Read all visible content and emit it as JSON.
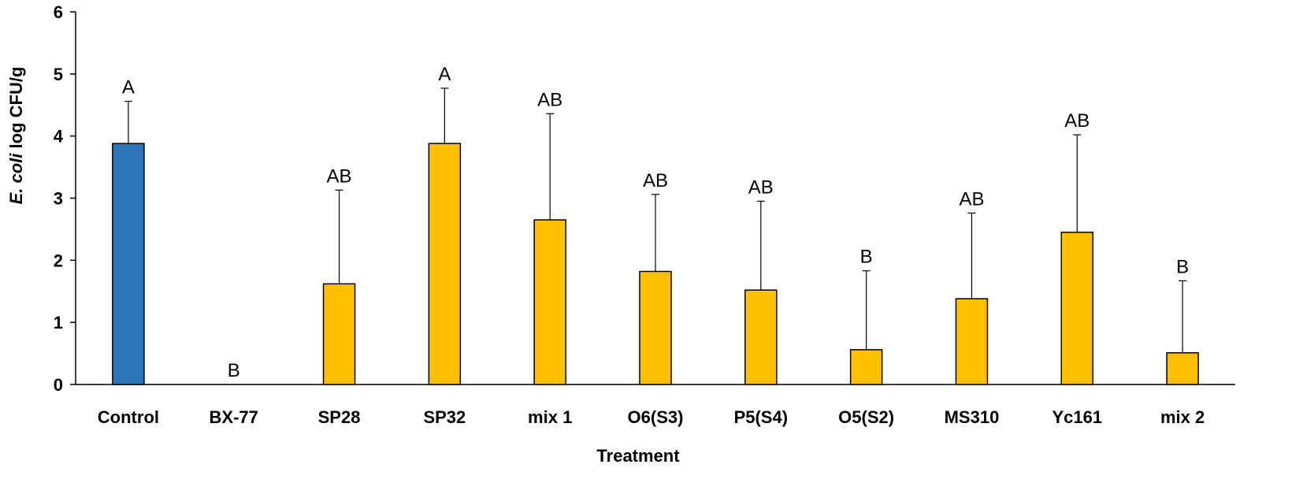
{
  "chart_data": {
    "type": "bar",
    "title": "",
    "xlabel": "Treatment",
    "ylabel_italic": "E. coli",
    "ylabel_rest": " log CFU/g",
    "ylim": [
      0,
      6
    ],
    "yticks": [
      "0",
      "1",
      "2",
      "3",
      "4",
      "5",
      "6"
    ],
    "grid": false,
    "categories": [
      "Control",
      "BX-77",
      "SP28",
      "SP32",
      "mix 1",
      "O6(S3)",
      "P5(S4)",
      "O5(S2)",
      "MS310",
      "Yc161",
      "mix 2"
    ],
    "values": [
      3.88,
      0,
      1.62,
      3.88,
      2.65,
      1.82,
      1.52,
      0.56,
      1.38,
      2.45,
      0.51
    ],
    "error_upper": [
      0.68,
      0,
      1.51,
      0.89,
      1.71,
      1.24,
      1.43,
      1.27,
      1.38,
      1.57,
      1.16
    ],
    "significance": [
      "A",
      "B",
      "AB",
      "A",
      "AB",
      "AB",
      "AB",
      "B",
      "AB",
      "AB",
      "B"
    ],
    "colors": {
      "control": "#2E75B6",
      "treatment": "#FFC000",
      "outline": "#000000"
    }
  }
}
